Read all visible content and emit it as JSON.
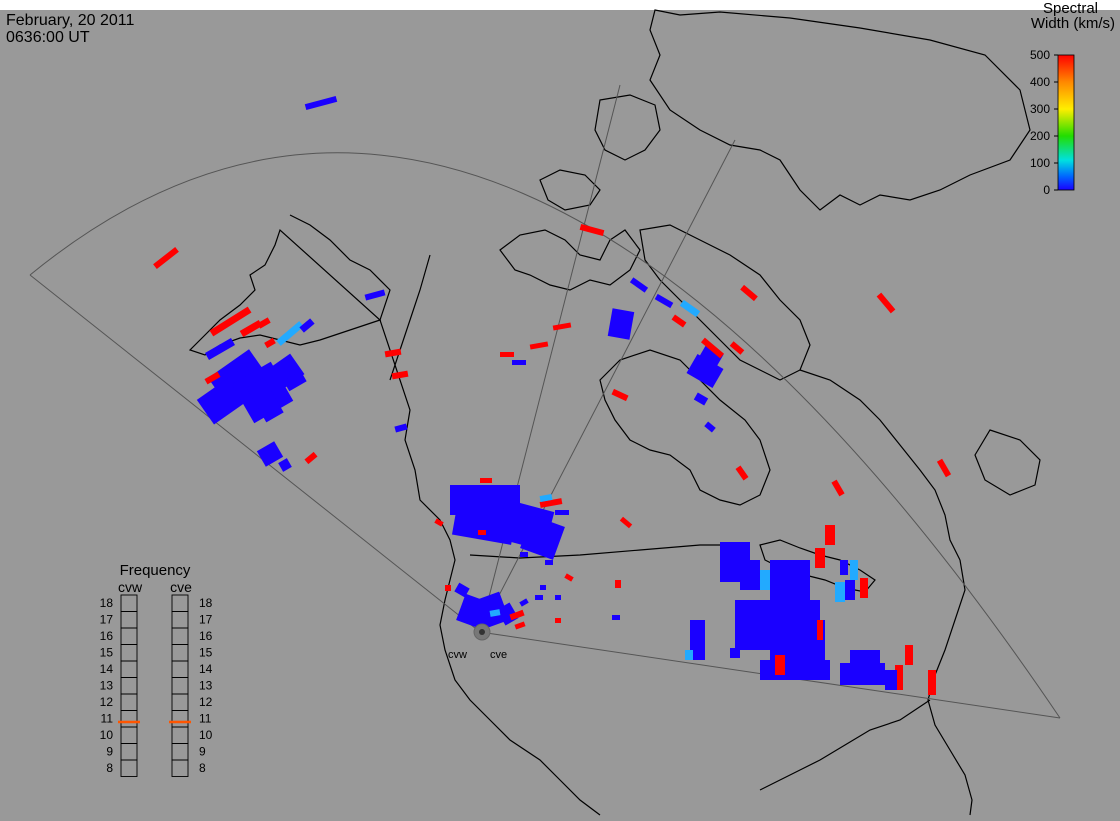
{
  "header": {
    "date": "February, 20 2011",
    "time": "0636:00 UT"
  },
  "legend": {
    "title_line1": "Spectral",
    "title_line2": "Width (km/s)",
    "ticks": [
      "500",
      "400",
      "300",
      "200",
      "100",
      "0"
    ],
    "min": 0,
    "max": 500,
    "colors": [
      "#ff0000",
      "#ff8800",
      "#ffee00",
      "#22dd00",
      "#00e0e0",
      "#0066ff",
      "#1a00ff"
    ]
  },
  "frequency": {
    "title": "Frequency",
    "radars": [
      "cvw",
      "cve"
    ],
    "levels": [
      "18",
      "17",
      "16",
      "15",
      "14",
      "13",
      "12",
      "11",
      "10",
      "9",
      "8"
    ],
    "cvw_mhz": 10.8,
    "cve_mhz": 10.8,
    "marker_color": "#ff5500"
  },
  "sites": {
    "west_label": "cvw",
    "east_label": "cve"
  },
  "colors": {
    "background": "#999999",
    "land_outline": "#000000",
    "fov_outline": "#555555",
    "echo_low": "#1a00ff",
    "echo_mid": "#22aaff",
    "echo_high": "#ff0000"
  }
}
